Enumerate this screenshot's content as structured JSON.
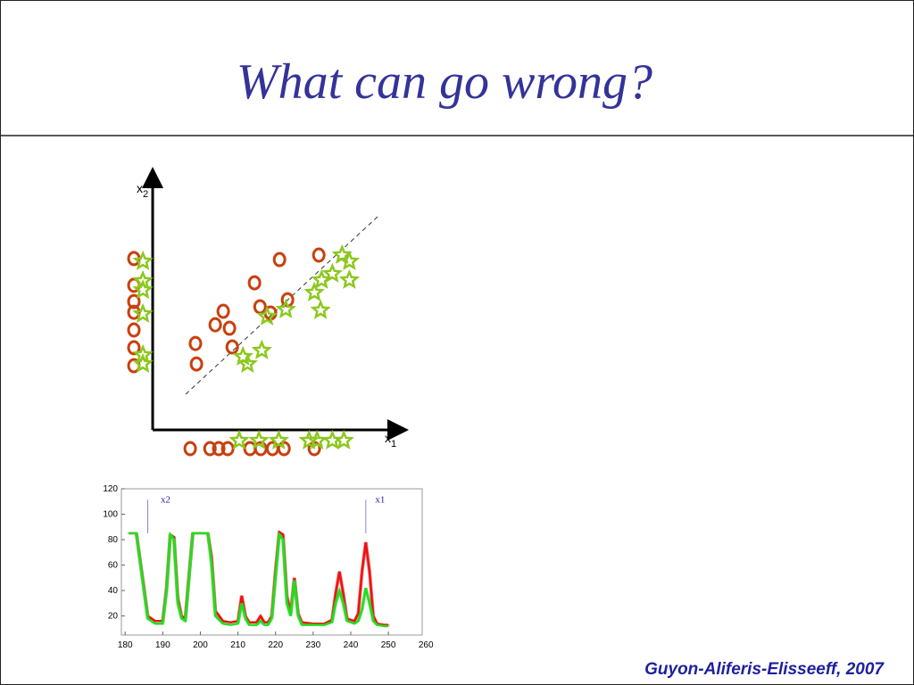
{
  "header": {
    "title": "What can go wrong?"
  },
  "footer": {
    "text": "Guyon-Aliferis-Elisseeff, 2007"
  },
  "chart_data": [
    {
      "type": "scatter",
      "x_label": "x1",
      "y_label": "x2",
      "xlim": [
        -1,
        10.2
      ],
      "ylim": [
        -1,
        10.5
      ],
      "series": [
        {
          "name": "circles",
          "marker": "circle",
          "color": "#c8400f",
          "x": [
            5.07,
            6.64,
            4.07,
            5.39,
            4.29,
            4.71,
            2.82,
            2.5,
            3.07,
            1.71,
            3.18,
            1.75,
            -0.75,
            -0.75,
            -0.75,
            -0.75,
            -0.75,
            -0.75,
            -0.75,
            1.5,
            2.29,
            2.64,
            3.0,
            3.89,
            4.32,
            4.79,
            5.25,
            6.46
          ],
          "values": [
            6.82,
            7.0,
            5.89,
            5.21,
            4.93,
            4.68,
            4.75,
            4.21,
            4.07,
            3.46,
            3.32,
            2.64,
            6.86,
            5.79,
            5.14,
            4.71,
            4.0,
            3.29,
            2.57,
            -0.75,
            -0.75,
            -0.75,
            -0.75,
            -0.75,
            -0.75,
            -0.75,
            -0.75,
            -0.75
          ]
        },
        {
          "name": "stars",
          "marker": "star",
          "color": "#8cc81e",
          "x": [
            7.57,
            7.86,
            7.18,
            6.75,
            6.46,
            7.86,
            6.71,
            5.32,
            4.57,
            4.36,
            3.61,
            3.79,
            -0.39,
            -0.39,
            -0.39,
            -0.39,
            -0.39,
            -0.39,
            3.46,
            4.25,
            5.04,
            6.25,
            6.57,
            7.18,
            7.64
          ],
          "values": [
            7.0,
            6.75,
            6.25,
            6.0,
            5.5,
            6.0,
            4.79,
            4.82,
            4.54,
            3.18,
            2.93,
            2.64,
            6.75,
            5.96,
            5.6,
            4.64,
            3.0,
            2.64,
            -0.43,
            -0.43,
            -0.43,
            -0.43,
            -0.43,
            -0.43,
            -0.43
          ]
        }
      ]
    },
    {
      "type": "line",
      "xlim": [
        179,
        259
      ],
      "ylim": [
        5,
        120
      ],
      "xticks": [
        180,
        190,
        200,
        210,
        220,
        230,
        240,
        250,
        260
      ],
      "yticks": [
        20,
        40,
        60,
        80,
        100,
        120
      ],
      "annotations": [
        {
          "text": "x2",
          "x": 186,
          "y": 110
        },
        {
          "text": "x1",
          "x": 244,
          "y": 110
        }
      ],
      "x": [
        181,
        183,
        185,
        186,
        188,
        190,
        191,
        192,
        193,
        194,
        195,
        196,
        197,
        198,
        200,
        202,
        203,
        204,
        206,
        208,
        210,
        211,
        212,
        213,
        215,
        216,
        217,
        218,
        219,
        220,
        221,
        222,
        223,
        224,
        225,
        226,
        227,
        230,
        233,
        235,
        236,
        237,
        238,
        239,
        241,
        242,
        243,
        244,
        245,
        246,
        247,
        249,
        250
      ],
      "series": [
        {
          "name": "red",
          "color": "#ee1111",
          "values": [
            85,
            85,
            42,
            20,
            16,
            16,
            42,
            84,
            82,
            34,
            20,
            18,
            52,
            85,
            85,
            85,
            66,
            24,
            16,
            15,
            16,
            36,
            20,
            15,
            15,
            20,
            15,
            15,
            20,
            56,
            86,
            84,
            36,
            22,
            50,
            22,
            15,
            14,
            14,
            17,
            38,
            55,
            38,
            18,
            16,
            22,
            55,
            78,
            55,
            20,
            14,
            13,
            13
          ]
        },
        {
          "name": "green",
          "color": "#22dd22",
          "values": [
            85,
            85,
            40,
            18,
            14,
            14,
            40,
            84,
            80,
            30,
            18,
            16,
            50,
            85,
            85,
            85,
            60,
            20,
            14,
            13,
            14,
            30,
            18,
            13,
            13,
            16,
            13,
            13,
            18,
            50,
            84,
            80,
            30,
            20,
            48,
            20,
            13,
            13,
            13,
            15,
            30,
            40,
            30,
            16,
            14,
            16,
            25,
            42,
            30,
            16,
            13,
            12,
            12
          ]
        }
      ]
    }
  ]
}
